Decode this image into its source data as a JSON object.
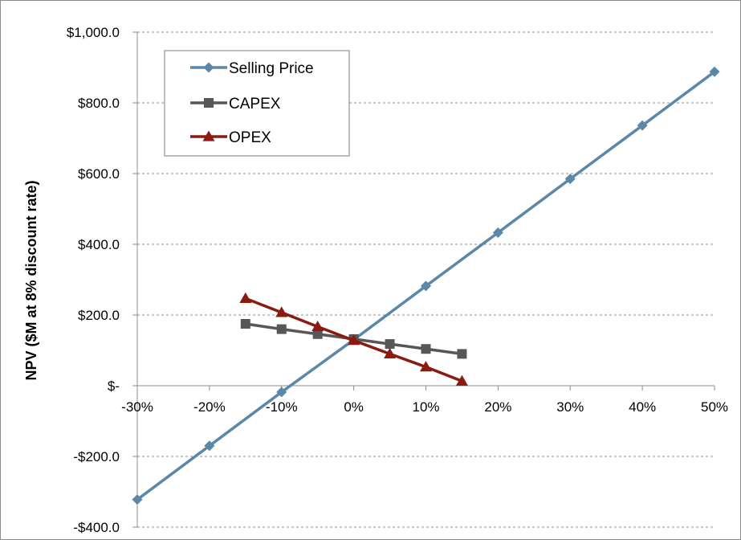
{
  "chart_data": {
    "type": "line",
    "title": "",
    "xlabel": "",
    "ylabel": "NPV ($M at 8% discount rate)",
    "xlim": [
      -30,
      50
    ],
    "ylim": [
      -400,
      1000
    ],
    "x_ticks": [
      {
        "value": -30,
        "label": "-30%"
      },
      {
        "value": -20,
        "label": "-20%"
      },
      {
        "value": -10,
        "label": "-10%"
      },
      {
        "value": 0,
        "label": "0%"
      },
      {
        "value": 10,
        "label": "10%"
      },
      {
        "value": 20,
        "label": "20%"
      },
      {
        "value": 30,
        "label": "30%"
      },
      {
        "value": 40,
        "label": "40%"
      },
      {
        "value": 50,
        "label": "50%"
      }
    ],
    "y_ticks": [
      {
        "value": 1000,
        "label": "$1,000.0"
      },
      {
        "value": 800,
        "label": "$800.0"
      },
      {
        "value": 600,
        "label": "$600.0"
      },
      {
        "value": 400,
        "label": "$400.0"
      },
      {
        "value": 200,
        "label": "$200.0"
      },
      {
        "value": 0,
        "label": "$-"
      },
      {
        "value": -200,
        "label": "-$200.0"
      },
      {
        "value": -400,
        "label": "-$400.0"
      }
    ],
    "grid": "horizontal dashed",
    "legend_position": "top-left",
    "series": [
      {
        "name": "Selling Price",
        "color": "#5b87a8",
        "marker": "diamond",
        "x": [
          -30,
          -20,
          -10,
          0,
          10,
          20,
          30,
          40,
          50
        ],
        "y": [
          -322,
          -170,
          -18,
          130,
          282,
          433,
          585,
          736,
          888
        ]
      },
      {
        "name": "CAPEX",
        "color": "#575757",
        "marker": "square",
        "x": [
          -15,
          -10,
          -5,
          0,
          5,
          10,
          15
        ],
        "y": [
          175,
          160,
          146,
          132,
          118,
          104,
          90
        ]
      },
      {
        "name": "OPEX",
        "color": "#8b1a10",
        "marker": "triangle",
        "x": [
          -15,
          -10,
          -5,
          0,
          5,
          10,
          15
        ],
        "y": [
          247,
          207,
          167,
          128,
          90,
          53,
          13
        ]
      }
    ]
  }
}
